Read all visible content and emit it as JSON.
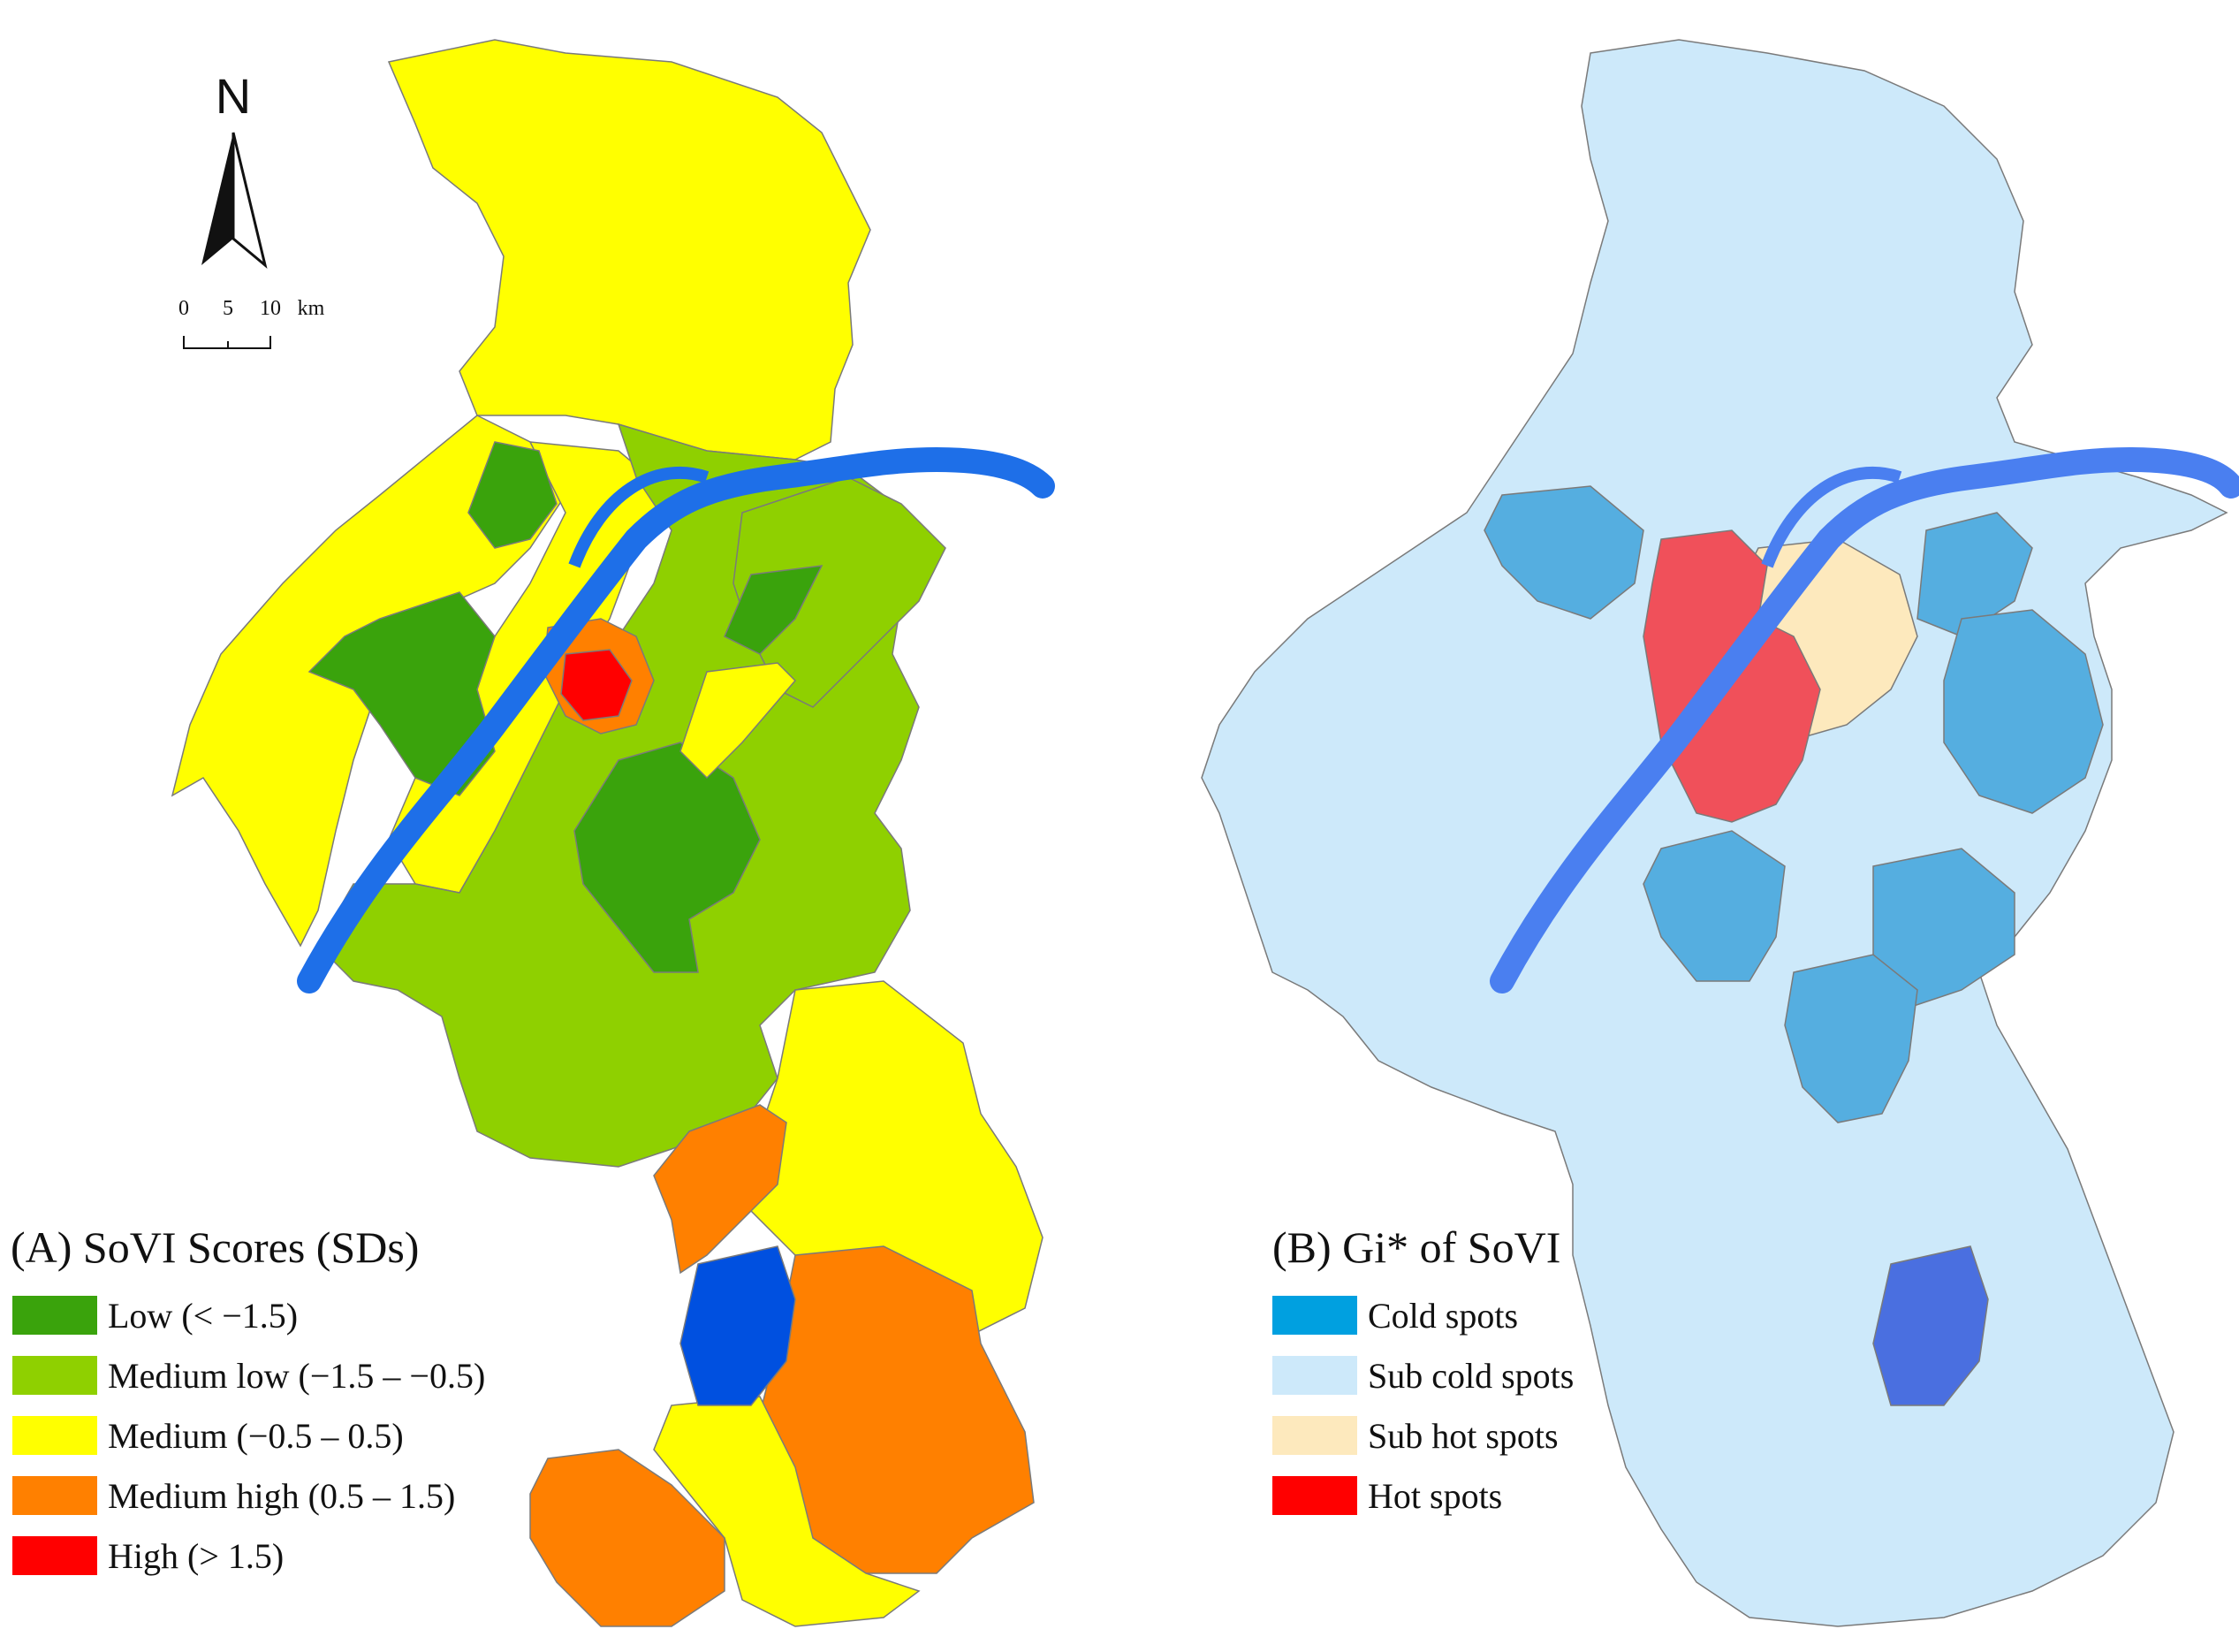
{
  "panel_a": {
    "title": "(A) SoVI Scores (SDs)",
    "legend": [
      {
        "label": "Low (< −1.5)",
        "color": "#3aa30c"
      },
      {
        "label": "Medium low (−1.5 – −0.5)",
        "color": "#8fd000"
      },
      {
        "label": "Medium (−0.5 – 0.5)",
        "color": "#ffff00"
      },
      {
        "label": "Medium high (0.5 – 1.5)",
        "color": "#ff8000"
      },
      {
        "label": "High (> 1.5)",
        "color": "#ff0000"
      }
    ]
  },
  "panel_b": {
    "title": "(B) Gi* of SoVI",
    "legend": [
      {
        "label": "Cold spots",
        "color": "#00a0e0"
      },
      {
        "label": "Sub cold spots",
        "color": "#cde9fa"
      },
      {
        "label": "Sub hot spots",
        "color": "#fde9bd"
      },
      {
        "label": "Hot spots",
        "color": "#ff0000"
      }
    ]
  },
  "north_arrow": {
    "label": "N",
    "icon": "north-arrow-icon"
  },
  "scale_bar": {
    "ticks": [
      "0",
      "5",
      "10"
    ],
    "unit": "km"
  },
  "colors": {
    "river": "#1e6fe8",
    "lake_a": "#0050e0",
    "lake_b": "#4a6fe0",
    "boundary": "#7a7a7a",
    "a_low": "#3aa30c",
    "a_mlow": "#8fd000",
    "a_med": "#ffff00",
    "a_mhigh": "#ff8000",
    "a_high": "#ff0000",
    "b_cold": "#55aee0",
    "b_subcold": "#cde9fa",
    "b_subhot": "#fde9bd",
    "b_hot": "#f0505a",
    "b_lake": "#4a6fe0",
    "b_river": "#4a7ff0"
  }
}
